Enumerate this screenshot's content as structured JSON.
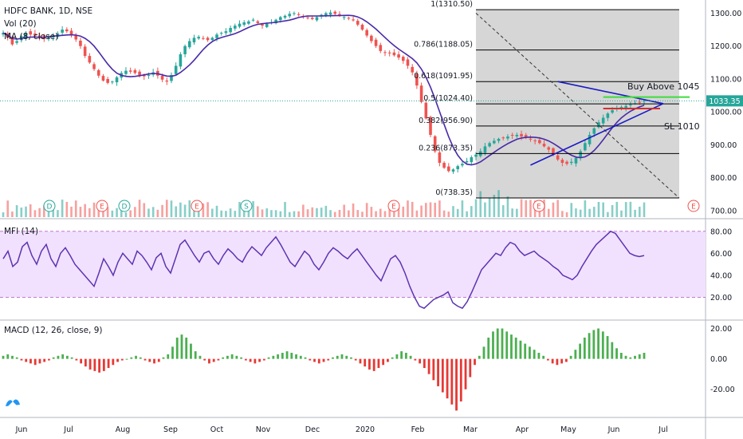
{
  "legend": {
    "symbol": "HDFC BANK, 1D, NSE",
    "volume": "Vol (20)",
    "ma": "MA (8, close)"
  },
  "colors": {
    "up": "#26a69a",
    "down": "#ef5350",
    "ma_line": "#4a2aa8",
    "fib_fill": "#c8c8c8",
    "mfi_band": "#f1e1ff",
    "mfi_line": "#5d34b0",
    "macd_up": "#4caf50",
    "macd_down": "#e53935",
    "trendline": "#1a1ac4",
    "buy_line": "#3ddc3d",
    "sl_line": "#d32f2f",
    "last_price": "#26a69a"
  },
  "chart_data": [
    {
      "type": "candlestick",
      "title": "HDFC BANK, 1D, NSE",
      "ylim": [
        680,
        1340
      ],
      "y_ticks": [
        "1300.00",
        "1200.00",
        "1100.00",
        "1000.00",
        "900.00",
        "800.00",
        "700.00"
      ],
      "last_price_label": "1033.35",
      "x_ticks": [
        "Jun",
        "Jul",
        "Aug",
        "Sep",
        "Oct",
        "Nov",
        "Dec",
        "2020",
        "Feb",
        "Mar",
        "Apr",
        "May",
        "Jun",
        "Jul"
      ],
      "price_path": [
        1240,
        1225,
        1205,
        1215,
        1230,
        1240,
        1235,
        1232,
        1228,
        1222,
        1225,
        1230,
        1238,
        1250,
        1245,
        1235,
        1220,
        1200,
        1170,
        1150,
        1130,
        1110,
        1095,
        1088,
        1092,
        1105,
        1118,
        1125,
        1122,
        1118,
        1112,
        1108,
        1112,
        1120,
        1110,
        1098,
        1092,
        1112,
        1140,
        1175,
        1200,
        1215,
        1225,
        1228,
        1222,
        1218,
        1225,
        1235,
        1240,
        1245,
        1255,
        1262,
        1268,
        1272,
        1275,
        1280,
        1270,
        1262,
        1268,
        1272,
        1280,
        1288,
        1292,
        1298,
        1300,
        1296,
        1290,
        1285,
        1282,
        1288,
        1295,
        1300,
        1302,
        1298,
        1292,
        1288,
        1285,
        1278,
        1265,
        1250,
        1232,
        1215,
        1200,
        1185,
        1180,
        1178,
        1172,
        1165,
        1155,
        1140,
        1120,
        1080,
        1030,
        980,
        930,
        880,
        845,
        830,
        820,
        825,
        835,
        842,
        850,
        862,
        870,
        880,
        895,
        905,
        912,
        918,
        920,
        925,
        928,
        930,
        925,
        922,
        918,
        912,
        905,
        895,
        885,
        870,
        855,
        845,
        842,
        848,
        860,
        880,
        905,
        930,
        950,
        968,
        982,
        995,
        1005,
        1010,
        1015,
        1018,
        1022,
        1026,
        1030,
        1033.35
      ],
      "fibonacci": [
        {
          "label": "1(1310.50)",
          "value": 1310.5
        },
        {
          "label": "0.786(1188.05)",
          "value": 1188.05
        },
        {
          "label": "0.618(1091.95)",
          "value": 1091.95
        },
        {
          "label": "0.5(1024.40)",
          "value": 1024.4
        },
        {
          "label": "0.382(956.90)",
          "value": 956.9
        },
        {
          "label": "0.236(873.35)",
          "value": 873.35
        },
        {
          "label": "0(738.35)",
          "value": 738.35
        }
      ],
      "annotations": [
        {
          "text": "Buy Above 1045",
          "value": 1045
        },
        {
          "text": "SL 1010",
          "value": 1010
        }
      ],
      "events": [
        "D",
        "E",
        "D",
        "E",
        "S",
        "E",
        "E",
        "E",
        "E"
      ]
    },
    {
      "type": "line",
      "title": "MFI (14)",
      "ylim": [
        0,
        90
      ],
      "y_ticks": [
        "80.00",
        "60.00",
        "40.00",
        "20.00"
      ],
      "bands": [
        80,
        20
      ],
      "values": [
        55,
        62,
        48,
        52,
        66,
        70,
        58,
        50,
        62,
        68,
        55,
        48,
        60,
        65,
        58,
        50,
        45,
        40,
        35,
        30,
        42,
        55,
        48,
        40,
        52,
        60,
        55,
        50,
        62,
        58,
        52,
        45,
        56,
        60,
        48,
        42,
        55,
        68,
        72,
        65,
        58,
        52,
        60,
        62,
        55,
        50,
        58,
        64,
        60,
        55,
        52,
        60,
        66,
        62,
        58,
        65,
        70,
        75,
        68,
        60,
        52,
        48,
        55,
        62,
        58,
        50,
        45,
        52,
        60,
        65,
        62,
        58,
        55,
        60,
        64,
        58,
        52,
        46,
        40,
        35,
        45,
        55,
        58,
        52,
        42,
        30,
        20,
        12,
        10,
        14,
        18,
        20,
        22,
        25,
        15,
        12,
        10,
        16,
        25,
        35,
        45,
        50,
        55,
        60,
        58,
        65,
        70,
        68,
        62,
        58,
        60,
        62,
        58,
        55,
        52,
        48,
        45,
        40,
        38,
        36,
        40,
        48,
        55,
        62,
        68,
        72,
        76,
        80,
        78,
        72,
        66,
        60,
        58,
        57,
        58
      ],
      "series": [
        {
          "name": "MFI"
        }
      ]
    },
    {
      "type": "bar",
      "title": "MACD (12, 26, close, 9)",
      "ylim": [
        -38,
        25
      ],
      "y_ticks": [
        "20.00",
        "0.00",
        "-20.00"
      ],
      "values": [
        2,
        3,
        2,
        1,
        -1,
        -2,
        -3,
        -4,
        -3,
        -2,
        -1,
        1,
        2,
        3,
        2,
        1,
        -1,
        -3,
        -5,
        -7,
        -8,
        -9,
        -8,
        -6,
        -4,
        -2,
        -1,
        0,
        1,
        2,
        1,
        -1,
        -2,
        -3,
        -2,
        1,
        3,
        8,
        14,
        16,
        14,
        10,
        5,
        2,
        -1,
        -3,
        -2,
        -1,
        1,
        2,
        3,
        2,
        1,
        -1,
        -2,
        -3,
        -2,
        -1,
        1,
        2,
        3,
        4,
        5,
        4,
        3,
        2,
        1,
        -1,
        -2,
        -3,
        -2,
        -1,
        1,
        2,
        3,
        2,
        1,
        -1,
        -3,
        -5,
        -7,
        -8,
        -6,
        -4,
        -2,
        1,
        3,
        5,
        4,
        2,
        -1,
        -3,
        -6,
        -10,
        -14,
        -18,
        -22,
        -26,
        -30,
        -34,
        -28,
        -20,
        -12,
        -4,
        2,
        8,
        14,
        18,
        20,
        20,
        18,
        16,
        14,
        12,
        10,
        8,
        6,
        4,
        2,
        -1,
        -3,
        -4,
        -3,
        -2,
        2,
        6,
        10,
        14,
        17,
        19,
        20,
        18,
        15,
        11,
        7,
        4,
        2,
        1,
        2,
        3,
        4
      ],
      "series": [
        {
          "name": "MACD histogram"
        }
      ]
    }
  ]
}
